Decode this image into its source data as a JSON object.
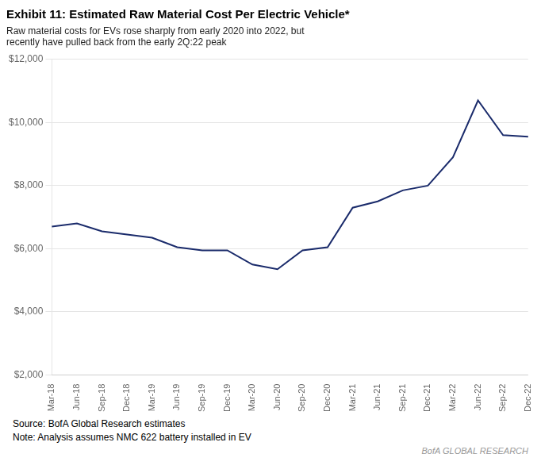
{
  "chart_data": {
    "type": "line",
    "title": "Exhibit 11: Estimated Raw Material Cost Per Electric Vehicle*",
    "subtitle": "Raw material costs for EVs rose sharply from early 2020 into 2022, but\nrecently have pulled back from the early 2Q:22 peak",
    "annotations": [
      "Source: BofA Global Research estimates",
      "Note: Analysis assumes NMC 622 battery installed in EV",
      "BofA GLOBAL RESEARCH"
    ],
    "categories": [
      "Mar-18",
      "Jun-18",
      "Sep-18",
      "Dec-18",
      "Mar-19",
      "Jun-19",
      "Sep-19",
      "Dec-19",
      "Mar-20",
      "Jun-20",
      "Sep-20",
      "Dec-20",
      "Mar-21",
      "Jun-21",
      "Sep-21",
      "Dec-21",
      "Mar-22",
      "Jun-22",
      "Sep-22",
      "Dec-22"
    ],
    "values": [
      6700,
      6800,
      6550,
      6450,
      6350,
      6050,
      5950,
      5950,
      5500,
      5350,
      5950,
      6050,
      7300,
      7500,
      7850,
      8000,
      8900,
      10700,
      9600,
      9550
    ],
    "color": "#1a2b6b",
    "ylim": [
      2000,
      12000
    ],
    "yticks": [
      {
        "value": 2000,
        "label": "$2,000"
      },
      {
        "value": 4000,
        "label": "$4,000"
      },
      {
        "value": 6000,
        "label": "$6,000"
      },
      {
        "value": 8000,
        "label": "$8,000"
      },
      {
        "value": 10000,
        "label": "$10,000"
      },
      {
        "value": 12000,
        "label": "$12,000"
      }
    ],
    "grid": true
  }
}
